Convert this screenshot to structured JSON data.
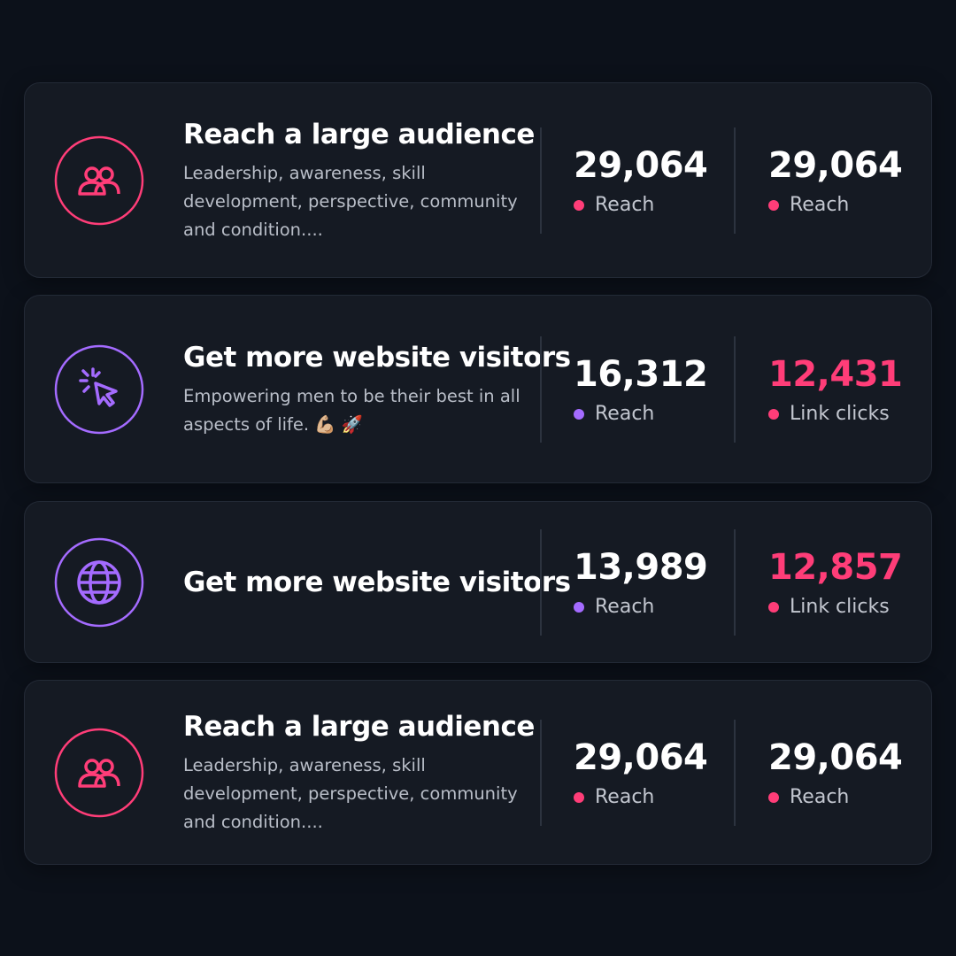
{
  "cards": [
    {
      "title": "Reach a large audience",
      "description": "Leadership, awareness, skill development, perspective, community and condition....",
      "stats": [
        {
          "value": "29,064",
          "label": "Reach"
        },
        {
          "value": "29,064",
          "label": "Reach"
        }
      ]
    },
    {
      "title": "Get more website visitors",
      "description": "Empowering men to be their best in all aspects of life. 💪🏼 🚀",
      "stats": [
        {
          "value": "16,312",
          "label": "Reach"
        },
        {
          "value": "12,431",
          "label": "Link clicks"
        }
      ]
    },
    {
      "title": "Get more website visitors",
      "stats": [
        {
          "value": "13,989",
          "label": "Reach"
        },
        {
          "value": "12,857",
          "label": "Link clicks"
        }
      ]
    },
    {
      "title": "Reach a large audience",
      "description": "Leadership, awareness, skill development, perspective, community and condition....",
      "stats": [
        {
          "value": "29,064",
          "label": "Reach"
        },
        {
          "value": "29,064",
          "label": "Reach"
        }
      ]
    }
  ]
}
